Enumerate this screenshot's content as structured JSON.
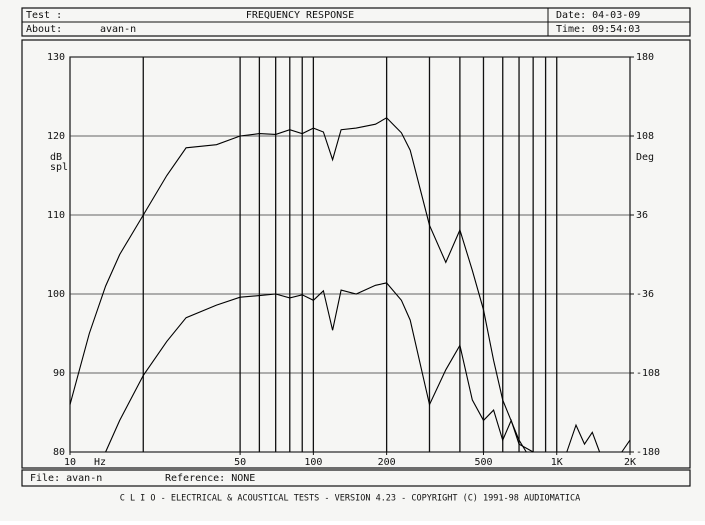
{
  "header": {
    "test": "Test :",
    "title": "FREQUENCY RESPONSE",
    "date": "Date: 04-03-09",
    "about": "About:",
    "about_value": "avan-n",
    "time": "Time: 09:54:03"
  },
  "footer": {
    "file": "File: avan-n",
    "reference": "Reference: NONE",
    "credits": "C L I O  -  ELECTRICAL & ACOUSTICAL TESTS  -  VERSION 4.23  -  COPYRIGHT (C) 1991-98 AUDIOMATICA"
  },
  "chart_data": {
    "type": "line",
    "xscale": "log",
    "grid": true,
    "color": "#000000",
    "xlabel": "Hz",
    "ylabel": [
      "dB",
      "spl"
    ],
    "y2label": "Deg",
    "xlim": [
      10,
      2000
    ],
    "ylim": [
      80,
      130
    ],
    "y2lim": [
      -180,
      180
    ],
    "xticks": [
      10,
      50,
      100,
      200,
      500,
      {
        "value": 1000,
        "label": "1K"
      },
      {
        "value": 2000,
        "label": "2K"
      }
    ],
    "xgrid": [
      20,
      50,
      60,
      70,
      80,
      90,
      100,
      200,
      300,
      400,
      500,
      600,
      700,
      800,
      900,
      1000
    ],
    "yticks": [
      80,
      90,
      100,
      110,
      120,
      130
    ],
    "y2ticks": [
      -180,
      -108,
      -36,
      36,
      108,
      180
    ],
    "series": [
      {
        "x": [
          10,
          12,
          14,
          16,
          20,
          25,
          30,
          40,
          50,
          60,
          70,
          80,
          90,
          100,
          110,
          120,
          130,
          150,
          180,
          200,
          230,
          250,
          300,
          350,
          400,
          450,
          500,
          550,
          600,
          700,
          750
        ],
        "values": [
          86,
          95,
          101,
          105,
          110,
          115,
          118.5,
          118.9,
          120,
          120.3,
          120.2,
          120.8,
          120.3,
          121,
          120.5,
          117,
          120.8,
          121,
          121.5,
          122.3,
          120.4,
          118.2,
          108.7,
          104,
          108.1,
          103,
          98,
          91.6,
          86.6,
          81.5,
          80
        ]
      },
      {
        "x": [
          14,
          16,
          20,
          25,
          30,
          40,
          50,
          60,
          70,
          80,
          90,
          100,
          110,
          120,
          130,
          150,
          180,
          200,
          230,
          250,
          300,
          350,
          400,
          450,
          500,
          550,
          600,
          650,
          700,
          800,
          null,
          1100,
          1200,
          1300,
          1400,
          1500,
          null,
          1850,
          2000
        ],
        "values": [
          80,
          84,
          89.7,
          94,
          97,
          98.6,
          99.6,
          99.8,
          100,
          99.5,
          99.9,
          99.2,
          100.4,
          95.4,
          100.5,
          100,
          101.1,
          101.4,
          99.2,
          96.7,
          86,
          90.4,
          93.5,
          86.6,
          84,
          85.3,
          81.5,
          84,
          81,
          80,
          null,
          80,
          83.4,
          81,
          82.5,
          80,
          null,
          80,
          81.5
        ]
      }
    ]
  }
}
